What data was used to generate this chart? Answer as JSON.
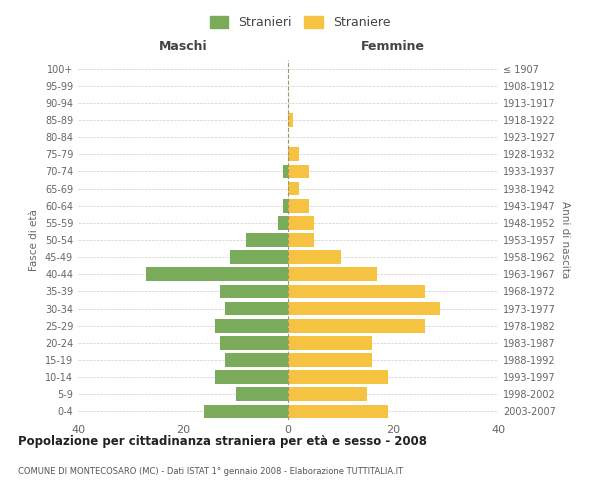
{
  "age_groups": [
    "0-4",
    "5-9",
    "10-14",
    "15-19",
    "20-24",
    "25-29",
    "30-34",
    "35-39",
    "40-44",
    "45-49",
    "50-54",
    "55-59",
    "60-64",
    "65-69",
    "70-74",
    "75-79",
    "80-84",
    "85-89",
    "90-94",
    "95-99",
    "100+"
  ],
  "birth_years": [
    "2003-2007",
    "1998-2002",
    "1993-1997",
    "1988-1992",
    "1983-1987",
    "1978-1982",
    "1973-1977",
    "1968-1972",
    "1963-1967",
    "1958-1962",
    "1953-1957",
    "1948-1952",
    "1943-1947",
    "1938-1942",
    "1933-1937",
    "1928-1932",
    "1923-1927",
    "1918-1922",
    "1913-1917",
    "1908-1912",
    "≤ 1907"
  ],
  "maschi": [
    16,
    10,
    14,
    12,
    13,
    14,
    12,
    13,
    27,
    11,
    8,
    2,
    1,
    0,
    1,
    0,
    0,
    0,
    0,
    0,
    0
  ],
  "femmine": [
    19,
    15,
    19,
    16,
    16,
    26,
    29,
    26,
    17,
    10,
    5,
    5,
    4,
    2,
    4,
    2,
    0,
    1,
    0,
    0,
    0
  ],
  "maschi_color": "#7aab5a",
  "femmine_color": "#f5c242",
  "background_color": "#ffffff",
  "grid_color": "#cccccc",
  "title": "Popolazione per cittadinanza straniera per età e sesso - 2008",
  "subtitle": "COMUNE DI MONTECOSARO (MC) - Dati ISTAT 1° gennaio 2008 - Elaborazione TUTTITALIA.IT",
  "ylabel_left": "Fasce di età",
  "ylabel_right": "Anni di nascita",
  "header_maschi": "Maschi",
  "header_femmine": "Femmine",
  "legend_maschi": "Stranieri",
  "legend_femmine": "Straniere",
  "xlim": 40,
  "bar_height": 0.8
}
